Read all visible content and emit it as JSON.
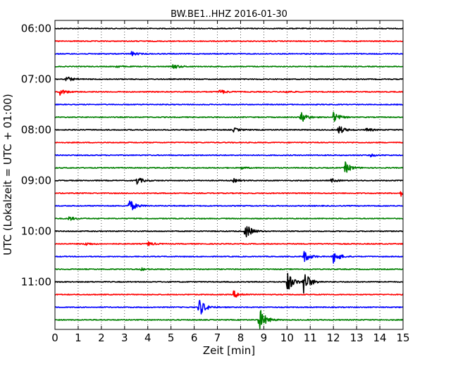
{
  "chart_data": {
    "type": "line",
    "title": "BW.BE1..HHZ 2016-01-30",
    "xlabel": "Zeit  [min]",
    "ylabel": "UTC (Lokalzeit = UTC + 01:00)",
    "xlim": [
      0,
      15
    ],
    "x_ticks": [
      "0",
      "1",
      "2",
      "3",
      "4",
      "5",
      "6",
      "7",
      "8",
      "9",
      "10",
      "11",
      "12",
      "13",
      "14",
      "15"
    ],
    "y_tick_labels": [
      "06:00",
      "07:00",
      "08:00",
      "09:00",
      "10:00",
      "11:00"
    ],
    "rows_per_hour": 4,
    "row_colors": [
      "#000000",
      "#ff0000",
      "#0000ff",
      "#008000"
    ],
    "grid": true,
    "rows": [
      {
        "time": "06:00",
        "events": []
      },
      {
        "time": "06:15",
        "events": []
      },
      {
        "time": "06:30",
        "events": [
          {
            "min": 3.3,
            "amp": 0.25
          }
        ]
      },
      {
        "time": "06:45",
        "events": [
          {
            "min": 2.6,
            "amp": 0.15
          },
          {
            "min": 5.1,
            "amp": 0.3
          }
        ]
      },
      {
        "time": "07:00",
        "events": [
          {
            "min": 0.5,
            "amp": 0.3
          }
        ]
      },
      {
        "time": "07:15",
        "events": [
          {
            "min": 0.2,
            "amp": 0.4
          },
          {
            "min": 7.1,
            "amp": 0.3
          },
          {
            "min": 9.9,
            "amp": 0.15
          }
        ]
      },
      {
        "time": "07:30",
        "events": []
      },
      {
        "time": "07:45",
        "events": [
          {
            "min": 10.6,
            "amp": 0.7
          },
          {
            "min": 12.0,
            "amp": 0.6
          }
        ]
      },
      {
        "time": "08:00",
        "events": [
          {
            "min": 7.7,
            "amp": 0.25
          },
          {
            "min": 12.2,
            "amp": 0.6
          },
          {
            "min": 13.4,
            "amp": 0.25
          }
        ]
      },
      {
        "time": "08:15",
        "events": []
      },
      {
        "time": "08:30",
        "events": [
          {
            "min": 13.6,
            "amp": 0.15
          }
        ]
      },
      {
        "time": "08:45",
        "events": [
          {
            "min": 8.0,
            "amp": 0.15
          },
          {
            "min": 12.5,
            "amp": 0.7
          }
        ]
      },
      {
        "time": "09:00",
        "events": [
          {
            "min": 3.5,
            "amp": 0.5
          },
          {
            "min": 7.7,
            "amp": 0.2
          },
          {
            "min": 11.9,
            "amp": 0.2
          }
        ]
      },
      {
        "time": "09:15",
        "events": [
          {
            "min": 14.9,
            "amp": 0.35
          }
        ]
      },
      {
        "time": "09:30",
        "events": [
          {
            "min": 3.2,
            "amp": 0.8
          }
        ]
      },
      {
        "time": "09:45",
        "events": [
          {
            "min": 0.6,
            "amp": 0.25
          }
        ]
      },
      {
        "time": "10:00",
        "events": [
          {
            "min": 8.2,
            "amp": 1.0
          }
        ]
      },
      {
        "time": "10:15",
        "events": [
          {
            "min": 1.3,
            "amp": 0.2
          },
          {
            "min": 4.0,
            "amp": 0.25
          }
        ]
      },
      {
        "time": "10:30",
        "events": [
          {
            "min": 10.7,
            "amp": 0.8
          },
          {
            "min": 12.0,
            "amp": 0.8
          }
        ]
      },
      {
        "time": "10:45",
        "events": [
          {
            "min": 3.7,
            "amp": 0.15
          }
        ]
      },
      {
        "time": "11:00",
        "events": [
          {
            "min": 10.0,
            "amp": 1.3
          },
          {
            "min": 10.7,
            "amp": 1.6
          }
        ]
      },
      {
        "time": "11:15",
        "events": [
          {
            "min": 7.7,
            "amp": 0.45
          }
        ]
      },
      {
        "time": "11:30",
        "events": [
          {
            "min": 6.2,
            "amp": 1.2
          }
        ]
      },
      {
        "time": "11:45",
        "events": [
          {
            "min": 8.8,
            "amp": 1.5
          }
        ]
      }
    ]
  }
}
